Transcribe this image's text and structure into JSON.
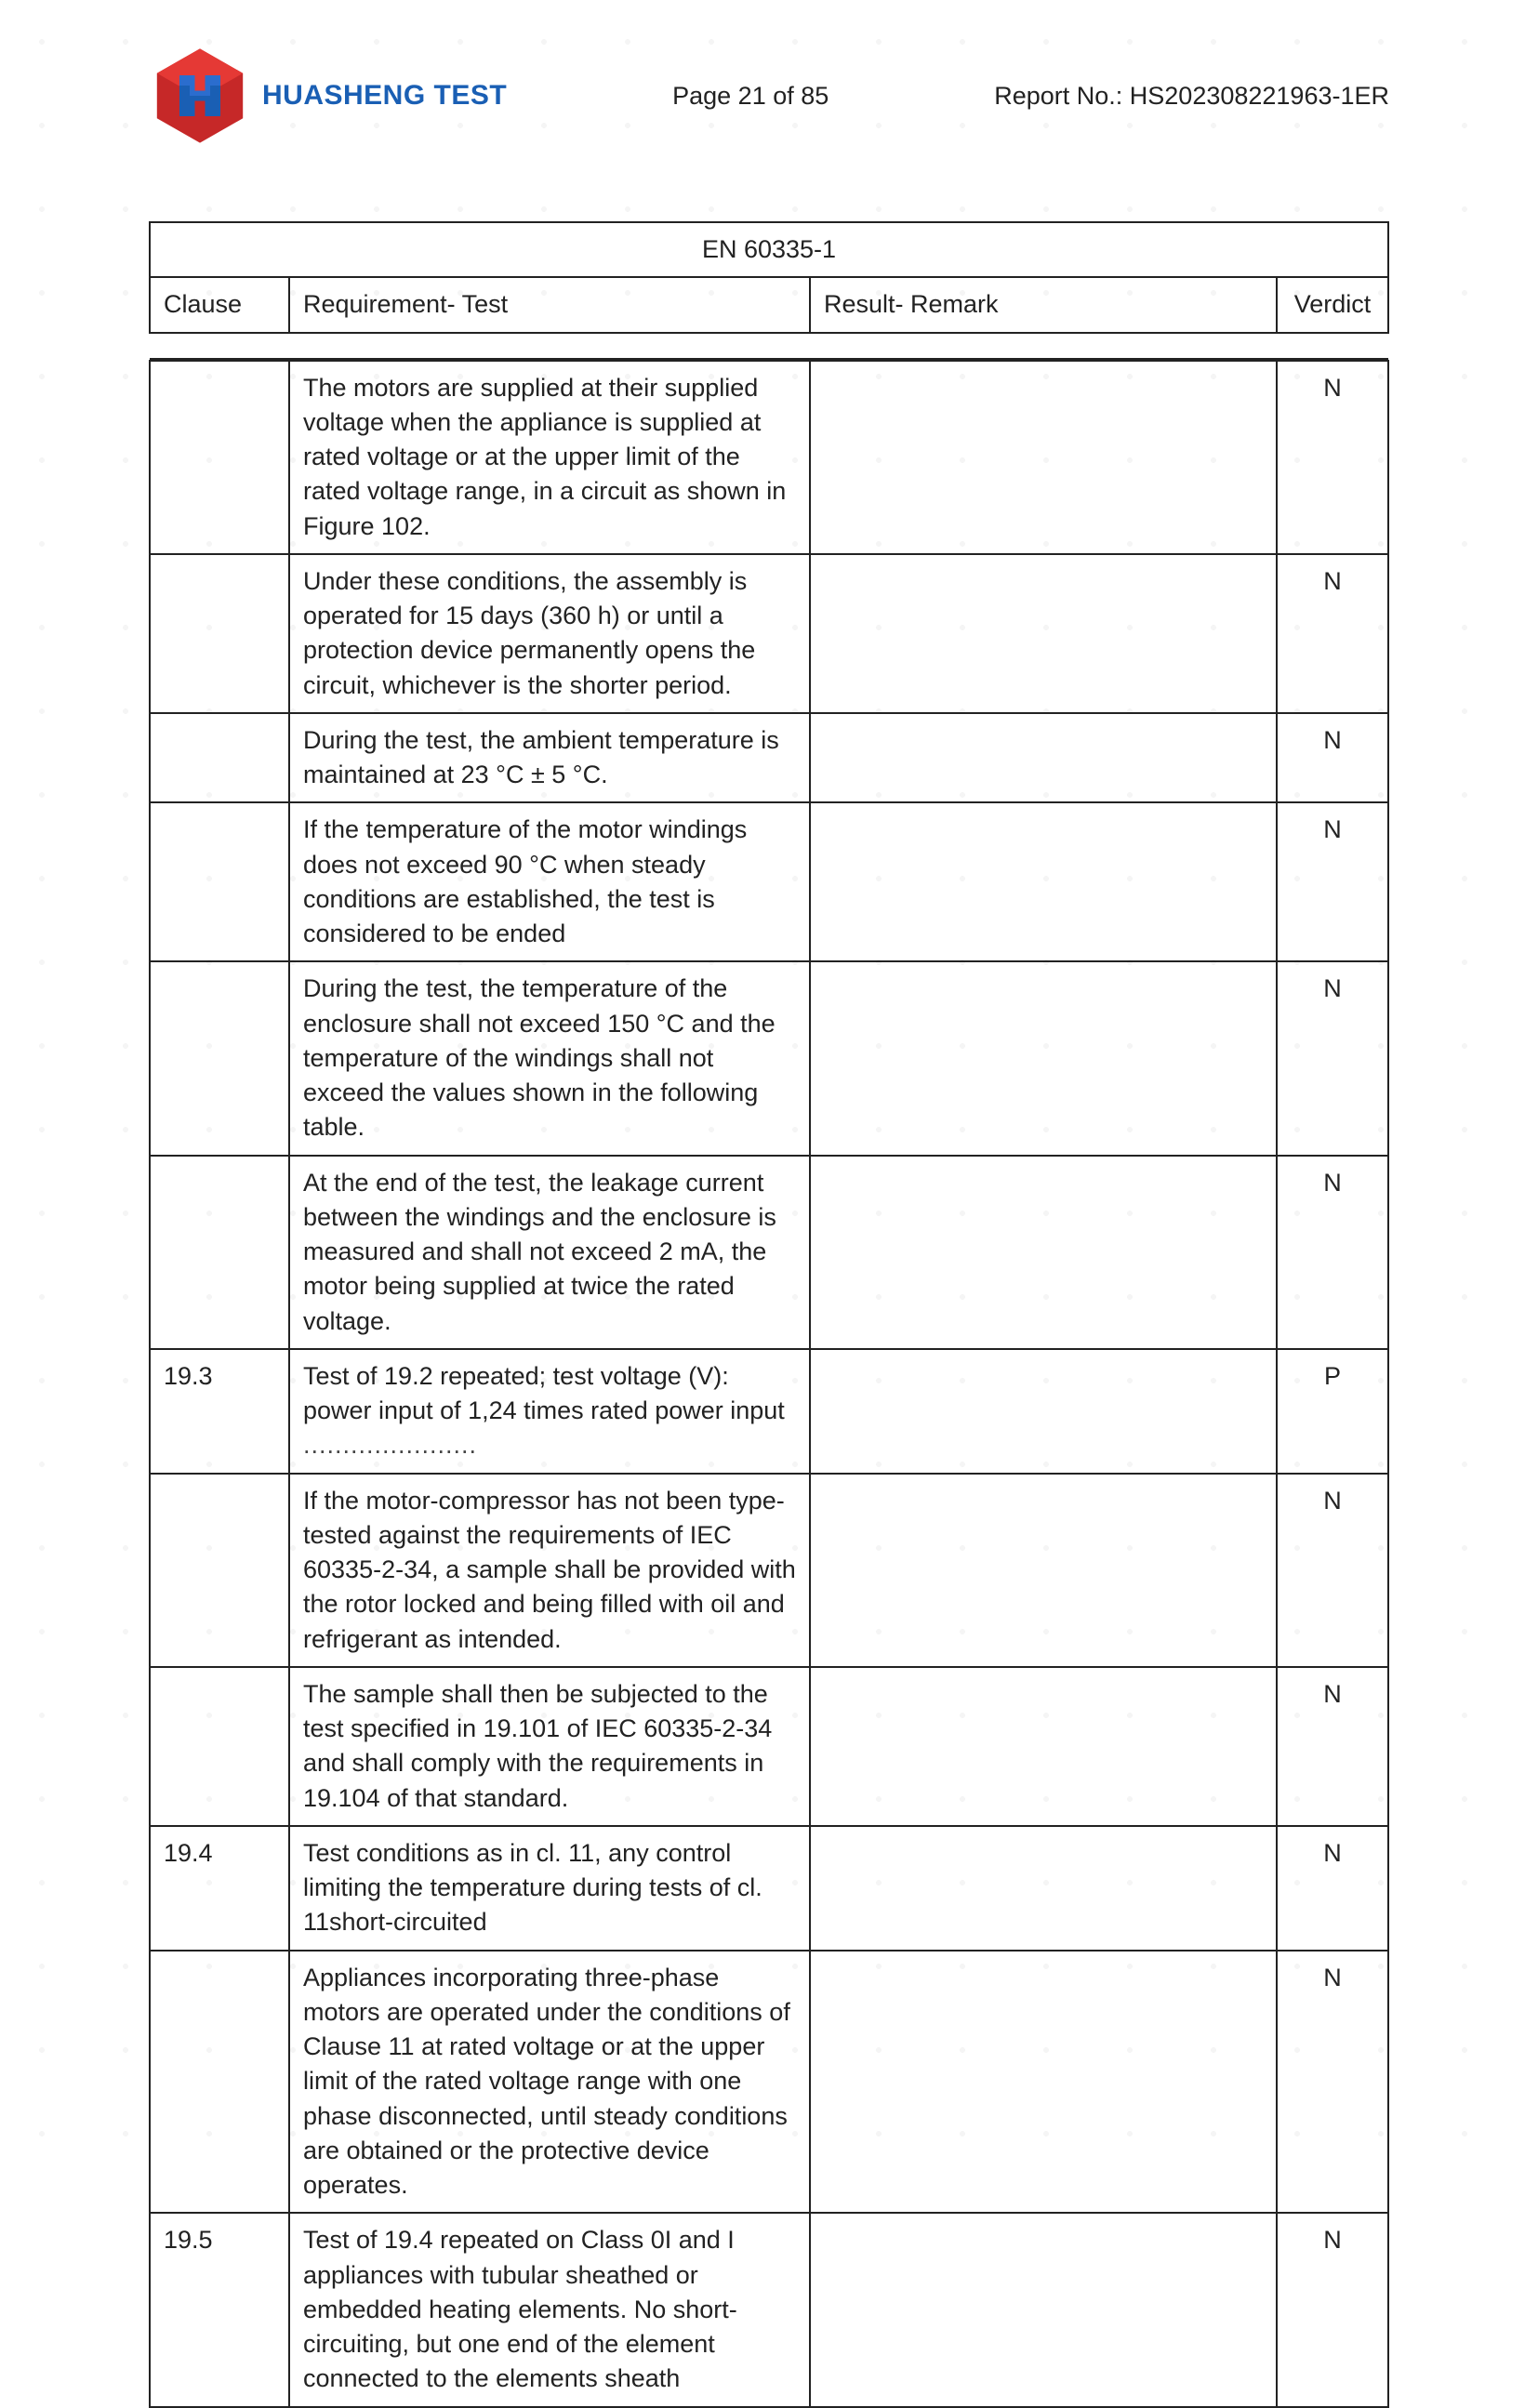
{
  "header": {
    "brand": "HUASHENG TEST",
    "page_label": "Page 21 of 85",
    "report_label": "Report No.: HS202308221963-1ER"
  },
  "standard_title": "EN 60335-1",
  "columns": {
    "clause": "Clause",
    "requirement": "Requirement- Test",
    "result": "Result- Remark",
    "verdict": "Verdict"
  },
  "rows": [
    {
      "clause": "",
      "requirement": "The motors are supplied at their supplied voltage when the appliance is supplied at rated voltage or at the upper limit of the rated voltage range, in a circuit as shown in Figure 102.",
      "result": "",
      "verdict": "N"
    },
    {
      "clause": "",
      "requirement": "Under these conditions, the assembly is operated for 15 days (360 h) or until a protection device permanently opens the circuit, whichever is the shorter period.",
      "result": "",
      "verdict": "N"
    },
    {
      "clause": "",
      "requirement": "During the test, the ambient temperature is maintained at 23 °C ± 5 °C.",
      "result": "",
      "verdict": "N"
    },
    {
      "clause": "",
      "requirement": "If the temperature of the motor windings does not exceed 90 °C when steady conditions are established, the test is considered to be ended",
      "result": "",
      "verdict": "N"
    },
    {
      "clause": "",
      "requirement": "During the test, the temperature of the enclosure shall not exceed 150 °C and the temperature of the windings shall not exceed the values shown in the following table.",
      "result": "",
      "verdict": "N"
    },
    {
      "clause": "",
      "requirement": "At the end of the test, the leakage current between the windings and the enclosure is measured and shall not exceed 2 mA, the motor being supplied at twice the rated voltage.",
      "result": "",
      "verdict": "N"
    },
    {
      "clause": "19.3",
      "requirement": "Test of 19.2 repeated; test voltage (V): power input of 1,24 times rated power input",
      "result": "",
      "verdict": "P",
      "dotted": true
    },
    {
      "clause": "",
      "requirement": "If the motor-compressor has not been type-tested against the requirements of IEC 60335-2-34, a sample shall be provided with the rotor locked and being filled with oil and refrigerant as intended.",
      "result": "",
      "verdict": "N"
    },
    {
      "clause": "",
      "requirement": "The sample shall then be subjected to the test specified in 19.101 of IEC 60335-2-34 and shall comply with the requirements in 19.104 of that standard.",
      "result": "",
      "verdict": "N"
    },
    {
      "clause": "19.4",
      "requirement": "Test conditions as in cl. 11, any control limiting the temperature during tests of cl. 11short-circuited",
      "result": "",
      "verdict": "N",
      "verdict_vcenter": true
    },
    {
      "clause": "",
      "requirement": "Appliances incorporating three-phase motors are operated under the conditions of Clause 11 at rated voltage or at the upper limit of the rated voltage range with one phase disconnected, until steady conditions are obtained or the protective device operates.",
      "result": "",
      "verdict": "N",
      "verdict_vcenter": true
    },
    {
      "clause": "19.5",
      "requirement": "Test of 19.4 repeated on Class 0I and I appliances with tubular sheathed or embedded heating elements. No short-circuiting, but one end of the element connected to the elements sheath",
      "result": "",
      "verdict": "N",
      "verdict_vcenter": true
    }
  ]
}
